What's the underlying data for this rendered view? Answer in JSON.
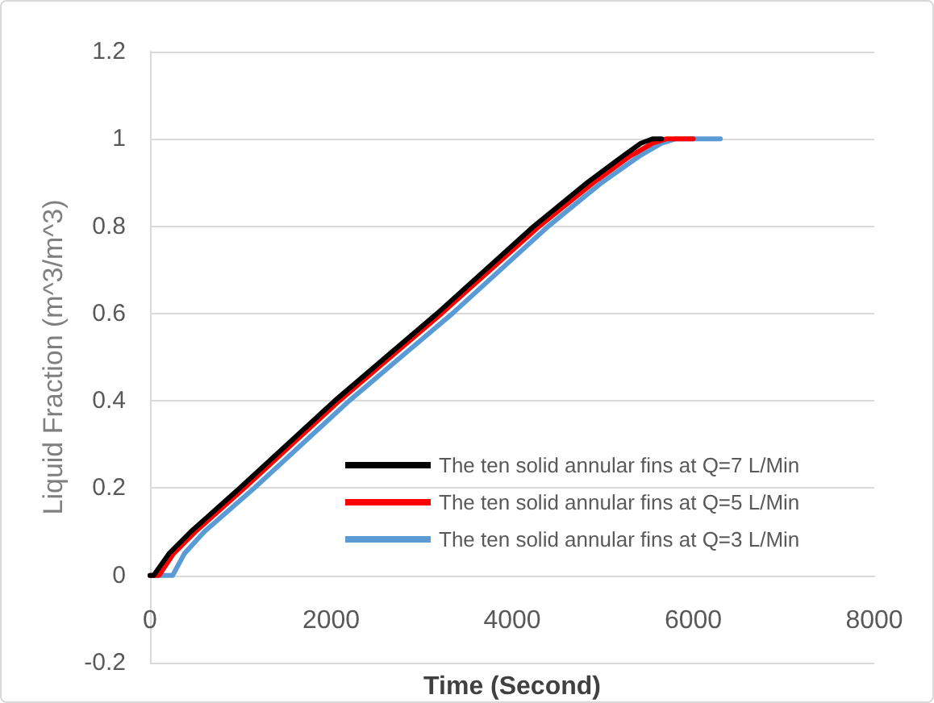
{
  "chart_data": {
    "type": "line",
    "xlabel": "Time (Second)",
    "ylabel": "Liquid Fraction (m^3/m^3)",
    "xlim": [
      0,
      8000
    ],
    "xticks": [
      0,
      2000,
      4000,
      6000,
      8000
    ],
    "ylim": [
      -0.2,
      1.2
    ],
    "yticks": [
      -0.2,
      0,
      0.2,
      0.4,
      0.6,
      0.8,
      1,
      1.2
    ],
    "grid": "y",
    "legend": "bottom right",
    "marker": "none",
    "line_style": "solid",
    "series": [
      {
        "name": "The ten solid annular fins at Q=7 L/Min",
        "color": "#000000",
        "x": [
          0,
          40,
          210,
          450,
          990,
          2040,
          3170,
          4240,
          4830,
          5220,
          5420,
          5550,
          5650
        ],
        "values": [
          0,
          0,
          0.05,
          0.1,
          0.2,
          0.4,
          0.6,
          0.8,
          0.9,
          0.96,
          0.99,
          1,
          1
        ]
      },
      {
        "name": "The ten solid annular fins at Q=5 L/Min",
        "color": "#ff0000",
        "x": [
          0,
          100,
          260,
          500,
          1040,
          2090,
          3220,
          4300,
          4900,
          5300,
          5550,
          5700,
          6000
        ],
        "values": [
          0,
          0,
          0.05,
          0.1,
          0.2,
          0.4,
          0.6,
          0.8,
          0.9,
          0.96,
          0.99,
          1,
          1
        ]
      },
      {
        "name": "The ten solid annular fins at Q=3 L/Min",
        "color": "#5b9bd5",
        "x": [
          0,
          250,
          380,
          600,
          1150,
          2200,
          3340,
          4400,
          4990,
          5400,
          5650,
          5800,
          6300
        ],
        "values": [
          0,
          0,
          0.05,
          0.1,
          0.2,
          0.4,
          0.6,
          0.8,
          0.9,
          0.96,
          0.99,
          1,
          1
        ]
      }
    ]
  }
}
